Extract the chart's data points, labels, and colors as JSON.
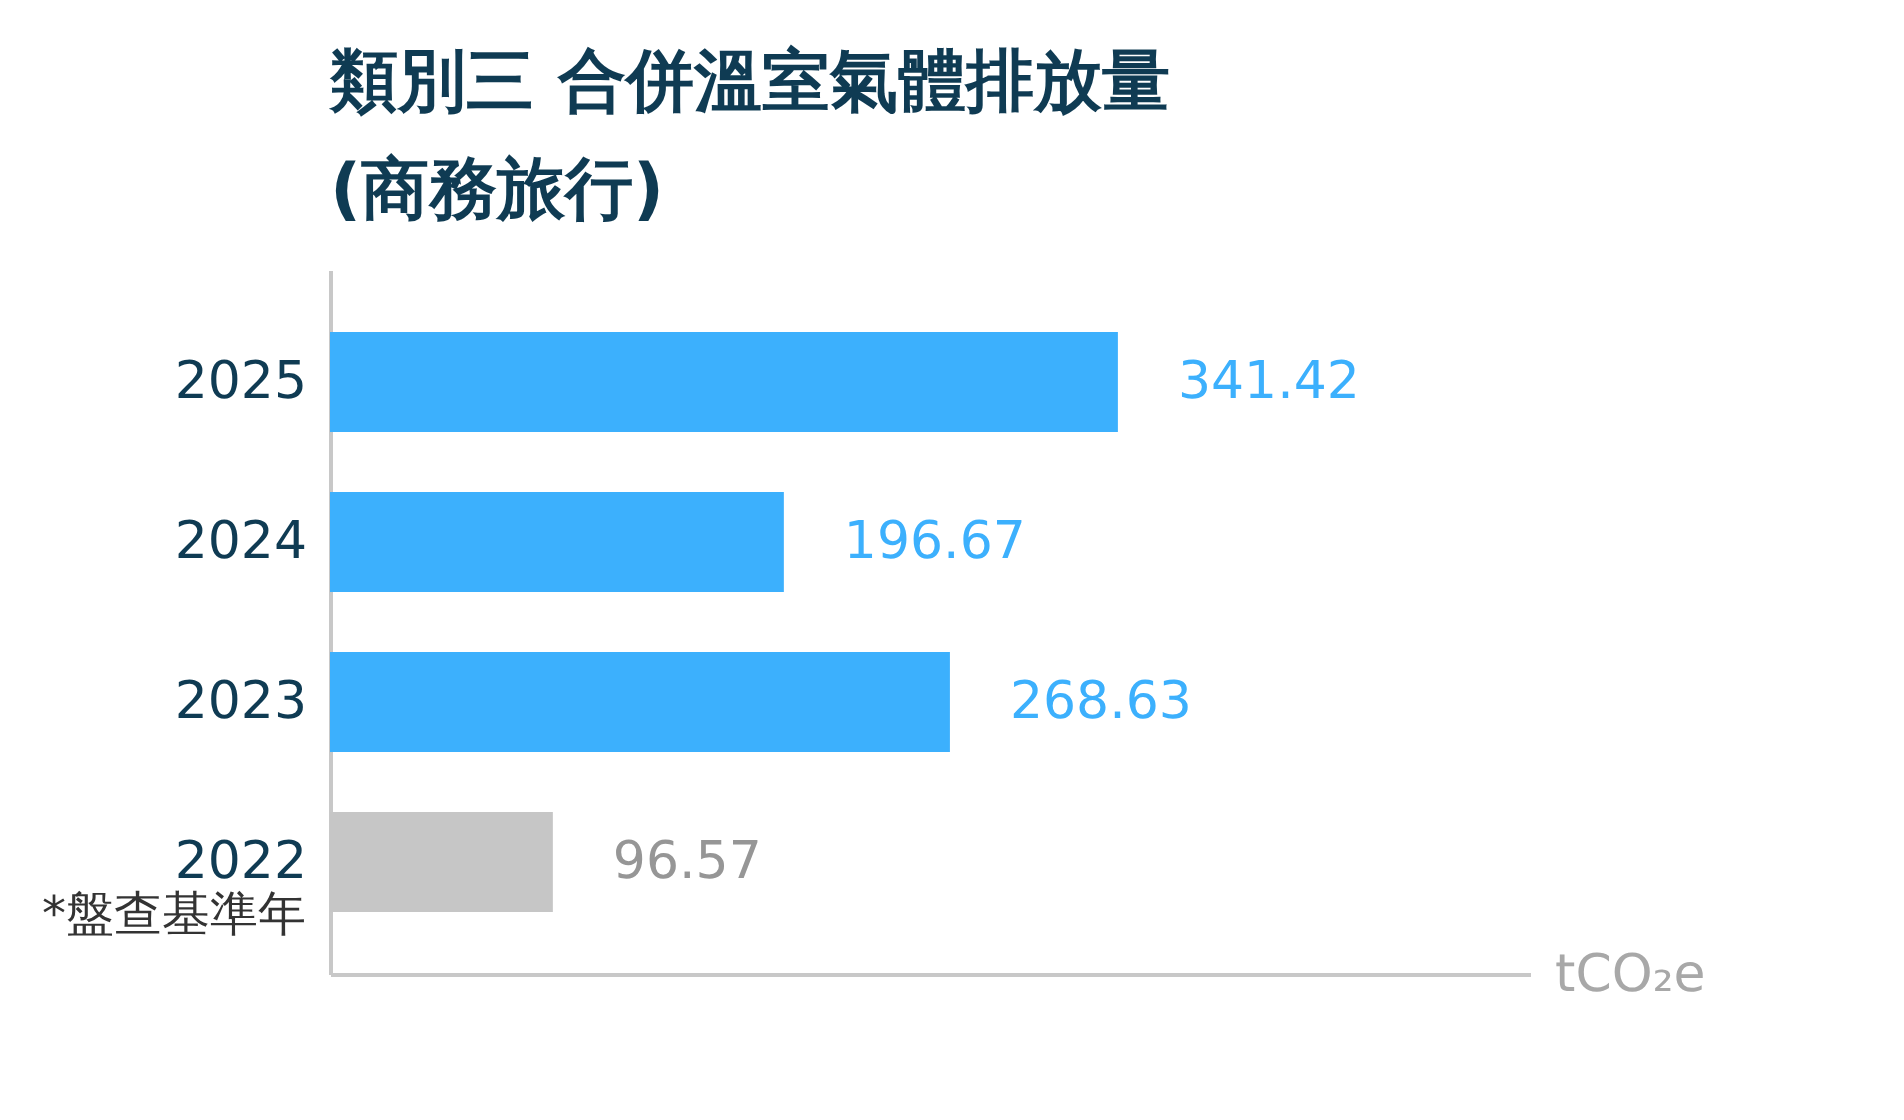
{
  "chart_data": {
    "type": "bar",
    "orientation": "horizontal",
    "title": "類別三  合併溫室氣體排放量\n(商務旅行)",
    "categories": [
      "2025",
      "2024",
      "2023",
      "2022"
    ],
    "values": [
      341.42,
      196.67,
      268.63,
      96.57
    ],
    "colors": [
      "#3cb0fd",
      "#3cb0fd",
      "#3cb0fd",
      "#c6c6c6"
    ],
    "xlabel": "tCO₂e",
    "xlim": [
      0,
      520
    ],
    "tick_labels": "y",
    "data_labels": true,
    "annotations": [
      "*盤查基準年"
    ]
  }
}
